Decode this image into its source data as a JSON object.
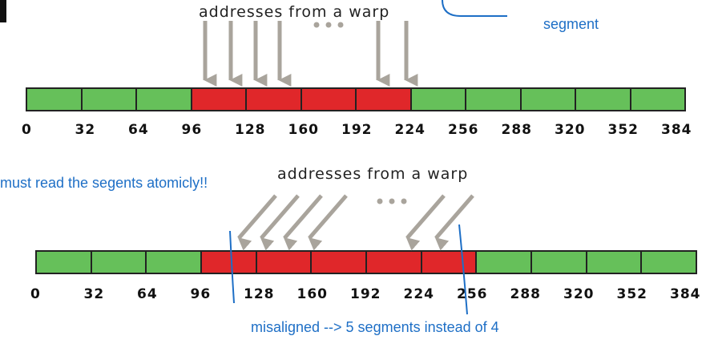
{
  "colors": {
    "aligned_segment": "#66c05a",
    "accessed_segment": "#e0272a",
    "annotation_blue": "#1e6fc6",
    "arrow_gray": "#a9a49c"
  },
  "top_diagram": {
    "caption": "addresses from a warp",
    "note": "segment",
    "segments": [
      "green",
      "green",
      "green",
      "red",
      "red",
      "red",
      "red",
      "green",
      "green",
      "green",
      "green",
      "green"
    ],
    "ticks": [
      "0",
      "32",
      "64",
      "96",
      "128",
      "160",
      "192",
      "224",
      "256",
      "288",
      "320",
      "352",
      "384"
    ]
  },
  "bottom_diagram": {
    "caption": "addresses from a warp",
    "note_left": "must read the segents atomicly!!",
    "note_bottom": "misaligned --> 5 segments instead of 4",
    "segments": [
      "green",
      "green",
      "green",
      "red",
      "red",
      "red",
      "red",
      "red",
      "green",
      "green",
      "green",
      "green"
    ],
    "ticks": [
      "0",
      "32",
      "64",
      "96",
      "128",
      "160",
      "192",
      "224",
      "256",
      "288",
      "320",
      "352",
      "384"
    ]
  }
}
